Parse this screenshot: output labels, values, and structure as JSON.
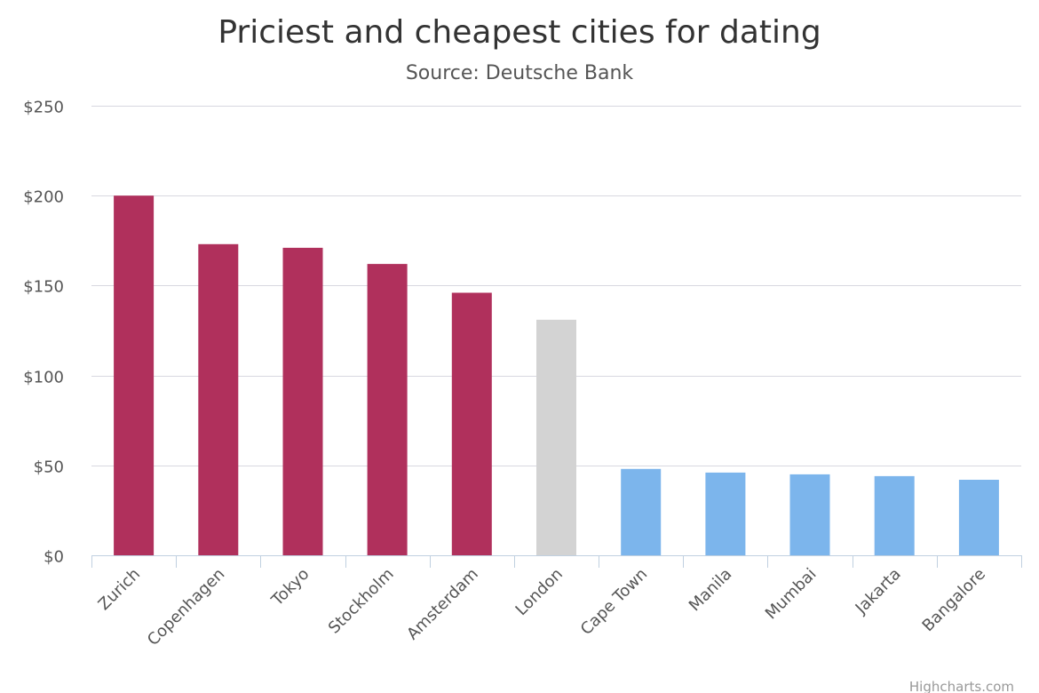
{
  "chart_data": {
    "type": "bar",
    "title": "Priciest and cheapest cities for dating",
    "subtitle": "Source: Deutsche Bank",
    "xlabel": "",
    "ylabel": "",
    "ylim": [
      0,
      250
    ],
    "y_ticks": [
      0,
      50,
      100,
      150,
      200,
      250
    ],
    "y_tick_prefix": "$",
    "grid": true,
    "categories": [
      "Zurich",
      "Copenhagen",
      "Tokyo",
      "Stockholm",
      "Amsterdam",
      "London",
      "Cape Town",
      "Manila",
      "Mumbai",
      "Jakarta",
      "Bangalore"
    ],
    "values": [
      200,
      173,
      171,
      162,
      146,
      131,
      48,
      46,
      45,
      44,
      42
    ],
    "bar_colors": [
      "#b0305c",
      "#b0305c",
      "#b0305c",
      "#b0305c",
      "#b0305c",
      "#d3d3d3",
      "#7cb5ec",
      "#7cb5ec",
      "#7cb5ec",
      "#7cb5ec",
      "#7cb5ec"
    ],
    "credit": "Highcharts.com"
  }
}
